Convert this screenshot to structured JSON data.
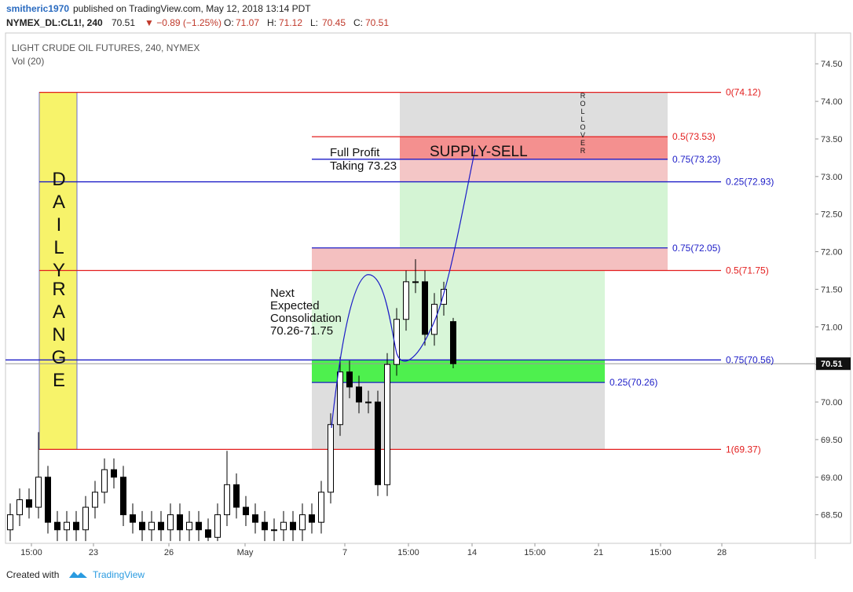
{
  "header": {
    "author": "smitheric1970",
    "published": "published on TradingView.com, May 12, 2018 13:14 PDT",
    "symbol": "NYMEX_DL:CL1!, 240",
    "price": 70.51,
    "change": "▼ −0.89 (−1.25%)",
    "ohlc": [
      {
        "label": "O:",
        "value": 71.07
      },
      {
        "label": "H:",
        "value": 71.12
      },
      {
        "label": "L:",
        "value": 70.45
      },
      {
        "label": "C:",
        "value": 70.51
      }
    ]
  },
  "footer": {
    "created": "Created with",
    "brand": "TradingView"
  },
  "chart_data": {
    "type": "candlestick",
    "title": "LIGHT CRUDE OIL FUTURES, 240, NYMEX",
    "subtitle": "Vol (20)",
    "xlim": [
      0,
      257.75
    ],
    "ylim": [
      68.12,
      74.91
    ],
    "xticks": [
      {
        "value": 8.25,
        "label": "15:00"
      },
      {
        "value": 28,
        "label": "23"
      },
      {
        "value": 52,
        "label": "26"
      },
      {
        "value": 76.25,
        "label": "May"
      },
      {
        "value": 108,
        "label": "7"
      },
      {
        "value": 128.25,
        "label": "15:00"
      },
      {
        "value": 148.5,
        "label": "14"
      },
      {
        "value": 168.5,
        "label": "15:00"
      },
      {
        "value": 188.75,
        "label": "21"
      },
      {
        "value": 208.5,
        "label": "15:00"
      },
      {
        "value": 228,
        "label": "28"
      }
    ],
    "yticks": [
      {
        "value": 68.5,
        "label": "68.50"
      },
      {
        "value": 69,
        "label": "69.00"
      },
      {
        "value": 69.5,
        "label": "69.50"
      },
      {
        "value": 70,
        "label": "70.00"
      },
      {
        "value": 70.5,
        "label": "70.50"
      },
      {
        "value": 71,
        "label": "71.00"
      },
      {
        "value": 71.5,
        "label": "71.50"
      },
      {
        "value": 72,
        "label": "72.00"
      },
      {
        "value": 72.5,
        "label": "72.50"
      },
      {
        "value": 73,
        "label": "73.00"
      },
      {
        "value": 73.5,
        "label": "73.50"
      },
      {
        "value": 74,
        "label": "74.00"
      },
      {
        "value": 74.5,
        "label": "74.50"
      }
    ],
    "last_price": 70.51,
    "x": [
      1.5,
      4.5,
      7.5,
      10.5,
      13.5,
      16.5,
      19.5,
      22.5,
      25.5,
      28.5,
      31.5,
      34.5,
      37.5,
      40.5,
      43.5,
      46.5,
      49.5,
      52.5,
      55.5,
      58.5,
      61.5,
      64.5,
      67.5,
      70.5,
      73.5,
      76.5,
      79.5,
      82.5,
      85.5,
      88.5,
      91.5,
      94.5,
      97.5,
      100.5,
      103.5,
      106.5,
      109.5,
      112.5,
      115.5,
      118.5,
      121.5,
      124.5,
      127.5,
      130.5,
      133.5,
      136.5,
      139.5,
      142.5
    ],
    "open": [
      68.3,
      68.5,
      68.7,
      68.6,
      69.0,
      68.4,
      68.3,
      68.4,
      68.3,
      68.6,
      68.8,
      69.1,
      69.0,
      68.5,
      68.4,
      68.3,
      68.4,
      68.3,
      68.5,
      68.3,
      68.4,
      68.3,
      68.2,
      68.5,
      68.9,
      68.6,
      68.5,
      68.4,
      68.3,
      68.3,
      68.4,
      68.3,
      68.5,
      68.4,
      68.8,
      69.7,
      70.4,
      70.2,
      70.0,
      70.0,
      68.9,
      70.5,
      71.1,
      71.6,
      71.6,
      70.9,
      71.3,
      71.07
    ],
    "high": [
      68.65,
      68.85,
      68.85,
      69.6,
      69.15,
      68.55,
      68.55,
      68.55,
      68.75,
      68.95,
      69.25,
      69.25,
      69.15,
      68.65,
      68.55,
      68.55,
      68.55,
      68.65,
      68.65,
      68.55,
      68.55,
      68.45,
      68.65,
      69.35,
      69.05,
      68.75,
      68.65,
      68.55,
      68.45,
      68.55,
      68.55,
      68.65,
      68.65,
      68.95,
      69.85,
      70.6,
      70.55,
      70.35,
      70.15,
      70.15,
      70.65,
      71.25,
      71.75,
      71.9,
      71.75,
      71.45,
      71.6,
      71.12
    ],
    "low": [
      68.15,
      68.35,
      68.45,
      68.45,
      68.25,
      68.15,
      68.15,
      68.15,
      68.15,
      68.45,
      68.65,
      68.85,
      68.35,
      68.25,
      68.15,
      68.15,
      68.15,
      68.15,
      68.15,
      68.15,
      68.15,
      68.15,
      68.15,
      68.35,
      68.45,
      68.35,
      68.25,
      68.15,
      68.15,
      68.15,
      68.15,
      68.15,
      68.25,
      68.25,
      68.65,
      69.55,
      70.05,
      69.85,
      69.85,
      68.75,
      68.75,
      70.35,
      70.95,
      71.45,
      70.75,
      70.75,
      71.15,
      70.45
    ],
    "close": [
      68.5,
      68.7,
      68.6,
      69.0,
      68.4,
      68.3,
      68.4,
      68.3,
      68.6,
      68.8,
      69.1,
      69.0,
      68.5,
      68.4,
      68.3,
      68.4,
      68.3,
      68.5,
      68.3,
      68.4,
      68.3,
      68.2,
      68.5,
      68.9,
      68.6,
      68.5,
      68.4,
      68.3,
      68.3,
      68.4,
      68.3,
      68.5,
      68.4,
      68.8,
      69.7,
      70.4,
      70.2,
      70.0,
      70.0,
      68.9,
      70.5,
      71.1,
      71.6,
      71.6,
      70.9,
      71.3,
      71.5,
      70.51
    ],
    "zones": [
      {
        "x": [
          125.5,
          210.75
        ],
        "y": [
          73.53,
          74.12
        ],
        "color": "#dedede"
      },
      {
        "x": [
          125.5,
          210.75
        ],
        "y": [
          73.23,
          73.53
        ],
        "color": "#f4908f"
      },
      {
        "x": [
          125.5,
          210.75
        ],
        "y": [
          72.93,
          73.23
        ],
        "color": "#f4c6c6"
      },
      {
        "x": [
          125.5,
          210.75
        ],
        "y": [
          72.05,
          72.93
        ],
        "color": "#d4f4d4"
      },
      {
        "x": [
          97.5,
          210.75
        ],
        "y": [
          71.75,
          72.05
        ],
        "color": "#f4c0c0"
      },
      {
        "x": [
          97.5,
          190.75
        ],
        "y": [
          70.56,
          71.75
        ],
        "color": "#d8f6d8"
      },
      {
        "x": [
          97.5,
          190.75
        ],
        "y": [
          70.26,
          70.56
        ],
        "color": "#4ef04e"
      },
      {
        "x": [
          97.5,
          190.75
        ],
        "y": [
          69.37,
          70.26
        ],
        "color": "#dedede"
      },
      {
        "x": [
          10.75,
          22.75
        ],
        "y": [
          69.37,
          74.12
        ],
        "color": "#f7f36a"
      }
    ],
    "levels": [
      {
        "label": "0(74.12)",
        "value": 74.12,
        "x": [
          10.75,
          227.75
        ],
        "color": "#e31e1e"
      },
      {
        "label": "0.5(73.53)",
        "value": 73.53,
        "x": [
          97.5,
          210.75
        ],
        "color": "#e31e1e"
      },
      {
        "label": "0.75(73.23)",
        "value": 73.23,
        "x": [
          97.5,
          210.75
        ],
        "color": "#1c1cc7"
      },
      {
        "label": "0.25(72.93)",
        "value": 72.93,
        "x": [
          10.75,
          227.75
        ],
        "color": "#1c1cc7"
      },
      {
        "label": "0.75(72.05)",
        "value": 72.05,
        "x": [
          97.5,
          210.75
        ],
        "color": "#1c1cc7"
      },
      {
        "label": "0.5(71.75)",
        "value": 71.75,
        "x": [
          10.75,
          227.75
        ],
        "color": "#e31e1e"
      },
      {
        "label": "0.75(70.56)",
        "value": 70.56,
        "x": [
          0,
          227.75
        ],
        "color": "#1c1cc7"
      },
      {
        "label": "0.25(70.26)",
        "value": 70.26,
        "x": [
          97.5,
          190.75
        ],
        "color": "#1c1cc7"
      },
      {
        "label": "1(69.37)",
        "value": 69.37,
        "x": [
          10.75,
          227.75
        ],
        "color": "#e31e1e"
      }
    ],
    "annotations": [
      {
        "lines": [
          "DAILY"
        ]
      },
      {
        "lines": [
          "RANGE"
        ]
      },
      {
        "lines": [
          "ROLLOVER"
        ]
      },
      {
        "lines": [
          "SUPPLY-SELL"
        ]
      },
      {
        "lines": [
          "Full Profit",
          "Taking 73.23"
        ]
      },
      {
        "lines": [
          "Next",
          "Expected",
          "Consolidation",
          "70.26-71.75"
        ]
      }
    ]
  }
}
